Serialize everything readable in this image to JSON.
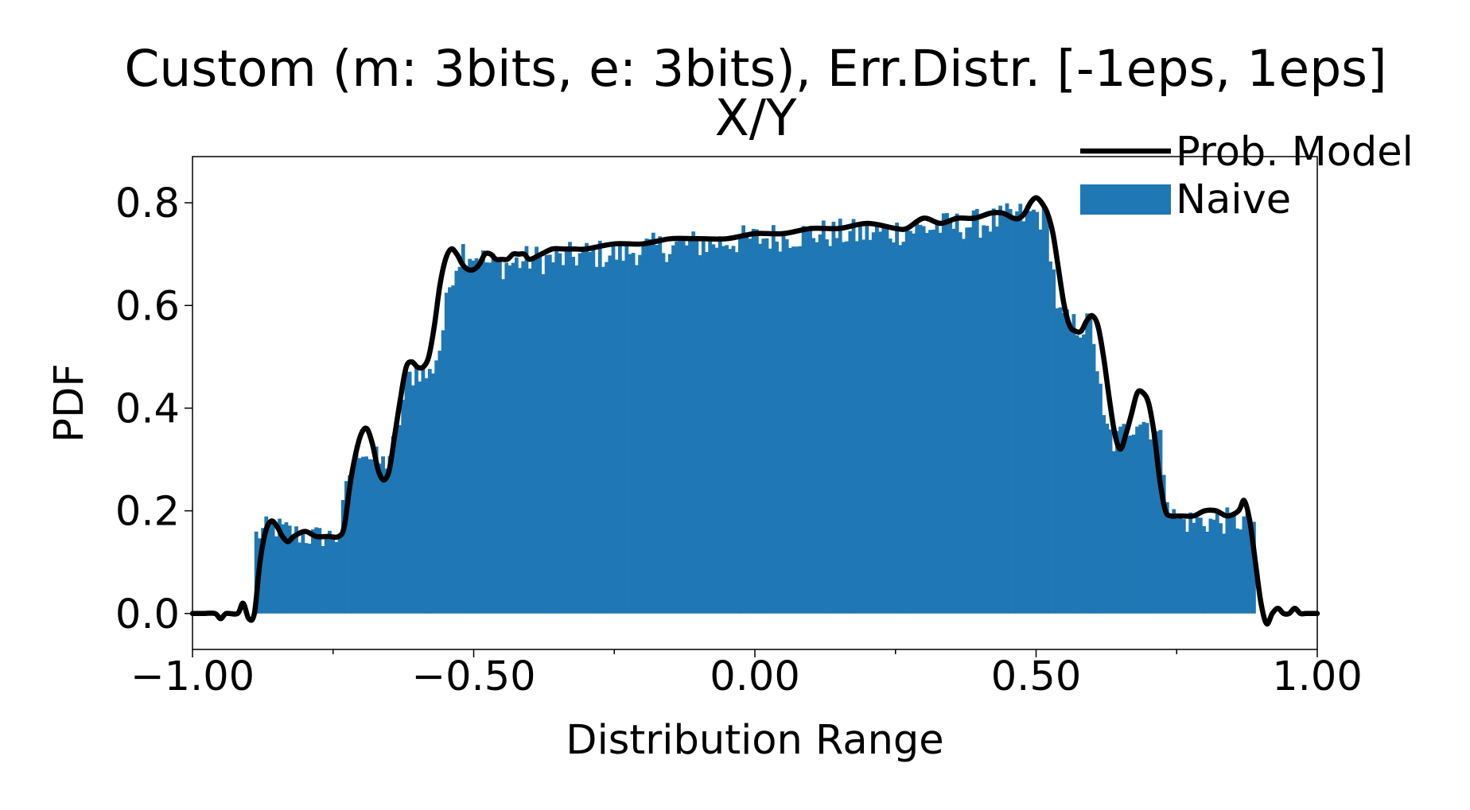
{
  "chart_data": {
    "type": "bar",
    "title": "Custom (m: 3bits, e: 3bits), Err.Distr. [-1eps, 1eps]",
    "subtitle": "X/Y",
    "xlabel": "Distribution Range",
    "ylabel": "PDF",
    "xlim": [
      -1.0,
      1.0
    ],
    "ylim": [
      -0.07,
      0.89
    ],
    "xticks": [
      -1.0,
      -0.5,
      0.0,
      0.5,
      1.0
    ],
    "xtick_labels": [
      "−1.00",
      "−0.50",
      "0.00",
      "0.50",
      "1.00"
    ],
    "yticks": [
      0.0,
      0.2,
      0.4,
      0.6,
      0.8
    ],
    "ytick_labels": [
      "0.0",
      "0.2",
      "0.4",
      "0.6",
      "0.8"
    ],
    "grid": false,
    "legend_position": "top-right",
    "series": [
      {
        "name": "Naive",
        "kind": "histogram",
        "color": "#1f77b4",
        "bin_range": [
          -0.89,
          0.89
        ],
        "bin_count": 300,
        "profile": {
          "x": [
            -0.89,
            -0.86,
            -0.8,
            -0.76,
            -0.74,
            -0.72,
            -0.7,
            -0.68,
            -0.66,
            -0.64,
            -0.62,
            -0.6,
            -0.58,
            -0.56,
            -0.54,
            -0.52,
            -0.5,
            -0.47,
            -0.44,
            -0.4,
            -0.35,
            -0.3,
            -0.25,
            -0.2,
            -0.1,
            0.0,
            0.1,
            0.2,
            0.3,
            0.4,
            0.45,
            0.5,
            0.52,
            0.54,
            0.56,
            0.58,
            0.6,
            0.62,
            0.64,
            0.66,
            0.68,
            0.7,
            0.72,
            0.74,
            0.76,
            0.8,
            0.85,
            0.89
          ],
          "y": [
            0.15,
            0.17,
            0.15,
            0.15,
            0.15,
            0.28,
            0.33,
            0.3,
            0.29,
            0.33,
            0.45,
            0.48,
            0.46,
            0.52,
            0.66,
            0.71,
            0.7,
            0.68,
            0.68,
            0.69,
            0.69,
            0.7,
            0.7,
            0.71,
            0.72,
            0.73,
            0.74,
            0.74,
            0.75,
            0.76,
            0.77,
            0.78,
            0.76,
            0.58,
            0.56,
            0.56,
            0.56,
            0.37,
            0.33,
            0.36,
            0.38,
            0.37,
            0.34,
            0.19,
            0.18,
            0.18,
            0.18,
            0.18
          ]
        }
      },
      {
        "name": "Prob. Model",
        "kind": "line",
        "color": "#000000",
        "x": [
          -1.0,
          -0.98,
          -0.96,
          -0.95,
          -0.94,
          -0.92,
          -0.91,
          -0.9,
          -0.89,
          -0.88,
          -0.87,
          -0.86,
          -0.85,
          -0.84,
          -0.83,
          -0.82,
          -0.8,
          -0.78,
          -0.76,
          -0.74,
          -0.73,
          -0.72,
          -0.71,
          -0.7,
          -0.69,
          -0.68,
          -0.67,
          -0.66,
          -0.65,
          -0.64,
          -0.63,
          -0.62,
          -0.61,
          -0.6,
          -0.59,
          -0.58,
          -0.57,
          -0.56,
          -0.55,
          -0.54,
          -0.53,
          -0.52,
          -0.51,
          -0.5,
          -0.49,
          -0.48,
          -0.47,
          -0.46,
          -0.45,
          -0.44,
          -0.43,
          -0.42,
          -0.41,
          -0.4,
          -0.38,
          -0.36,
          -0.34,
          -0.32,
          -0.3,
          -0.25,
          -0.2,
          -0.15,
          -0.1,
          -0.05,
          0.0,
          0.05,
          0.1,
          0.15,
          0.2,
          0.25,
          0.27,
          0.3,
          0.33,
          0.36,
          0.39,
          0.42,
          0.44,
          0.46,
          0.47,
          0.48,
          0.49,
          0.5,
          0.51,
          0.52,
          0.53,
          0.54,
          0.55,
          0.56,
          0.57,
          0.58,
          0.59,
          0.6,
          0.61,
          0.62,
          0.63,
          0.64,
          0.65,
          0.66,
          0.67,
          0.68,
          0.69,
          0.7,
          0.71,
          0.72,
          0.73,
          0.74,
          0.75,
          0.76,
          0.78,
          0.8,
          0.82,
          0.84,
          0.86,
          0.87,
          0.88,
          0.89,
          0.9,
          0.91,
          0.92,
          0.93,
          0.94,
          0.95,
          0.96,
          0.97,
          0.98,
          1.0
        ],
        "y": [
          0.0,
          0.0,
          0.0,
          -0.01,
          0.0,
          0.0,
          0.02,
          -0.01,
          0.0,
          0.1,
          0.16,
          0.18,
          0.17,
          0.15,
          0.14,
          0.15,
          0.16,
          0.15,
          0.15,
          0.15,
          0.17,
          0.25,
          0.31,
          0.35,
          0.36,
          0.33,
          0.28,
          0.26,
          0.28,
          0.35,
          0.42,
          0.48,
          0.49,
          0.48,
          0.48,
          0.5,
          0.56,
          0.64,
          0.69,
          0.71,
          0.7,
          0.68,
          0.67,
          0.67,
          0.68,
          0.7,
          0.7,
          0.69,
          0.69,
          0.69,
          0.7,
          0.7,
          0.7,
          0.69,
          0.7,
          0.71,
          0.71,
          0.71,
          0.71,
          0.72,
          0.72,
          0.73,
          0.73,
          0.73,
          0.74,
          0.74,
          0.75,
          0.75,
          0.76,
          0.75,
          0.75,
          0.77,
          0.76,
          0.77,
          0.77,
          0.78,
          0.78,
          0.77,
          0.77,
          0.78,
          0.8,
          0.81,
          0.8,
          0.78,
          0.74,
          0.67,
          0.6,
          0.56,
          0.55,
          0.55,
          0.57,
          0.58,
          0.56,
          0.5,
          0.42,
          0.35,
          0.32,
          0.35,
          0.39,
          0.43,
          0.43,
          0.41,
          0.35,
          0.26,
          0.2,
          0.19,
          0.19,
          0.19,
          0.19,
          0.2,
          0.2,
          0.19,
          0.2,
          0.22,
          0.18,
          0.1,
          0.02,
          -0.02,
          0.0,
          0.01,
          0.0,
          0.0,
          0.01,
          0.0,
          0.0,
          0.0
        ]
      }
    ]
  }
}
